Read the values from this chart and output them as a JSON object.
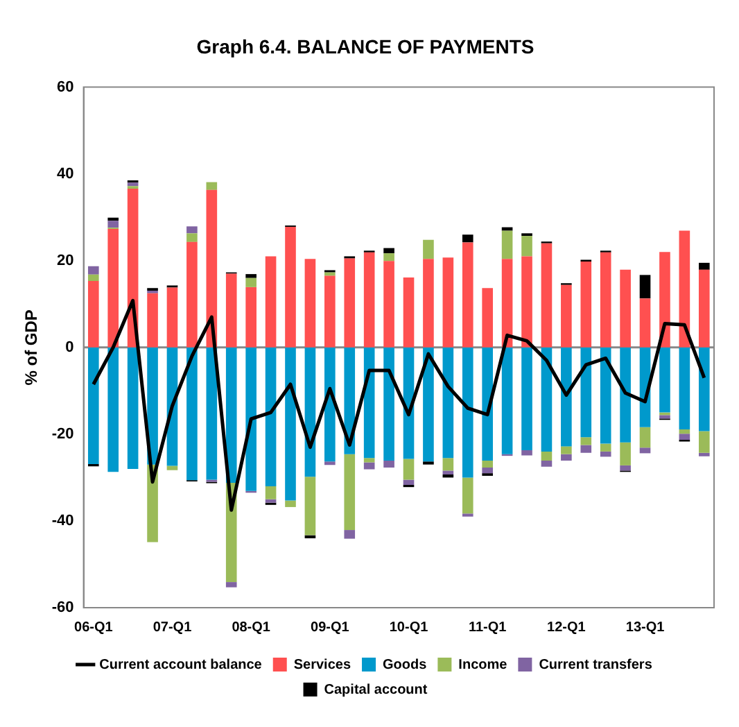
{
  "chart_data": {
    "type": "bar",
    "title": "Graph 6.4. BALANCE OF PAYMENTS",
    "ylabel": "% of GDP",
    "categories": [
      "06-Q1",
      null,
      null,
      null,
      "07-Q1",
      null,
      null,
      null,
      "08-Q1",
      null,
      null,
      null,
      "09-Q1",
      null,
      null,
      null,
      "10-Q1",
      null,
      null,
      null,
      "11-Q1",
      null,
      null,
      null,
      "12-Q1",
      null,
      null,
      null,
      "13-Q1",
      null,
      null,
      null
    ],
    "stacked": true,
    "series": [
      {
        "name": "Services",
        "color": "#ff5050",
        "values": [
          15.3,
          27.3,
          36.6,
          12.5,
          13.8,
          24.3,
          36.3,
          17,
          13.9,
          21,
          27.8,
          20.4,
          16.5,
          20.5,
          21.9,
          19.9,
          16.1,
          20.4,
          20.7,
          24.2,
          13.7,
          20.4,
          21,
          24,
          14.4,
          19.8,
          21.9,
          17.9,
          11.3,
          22,
          26.9,
          17.9
        ]
      },
      {
        "name": "Goods",
        "color": "#0099cc",
        "values": [
          -26.9,
          -28.7,
          -28,
          -27,
          -27.3,
          -30.6,
          -30.5,
          -31.2,
          -33.1,
          -32,
          -35.3,
          -29.8,
          -26.3,
          -24.6,
          -25.5,
          -26.1,
          -25.7,
          -26.3,
          -25.5,
          -30,
          -26.1,
          -24.6,
          -23.7,
          -24,
          -22.8,
          -20.7,
          -22.2,
          -21.9,
          -18.4,
          -15,
          -18.9,
          -19.3
        ]
      },
      {
        "name": "Income",
        "color": "#9bbb59",
        "values": [
          1.5,
          0.3,
          0.6,
          -17.9,
          -1,
          2,
          1.8,
          -22.9,
          2.1,
          -3,
          -1.5,
          -13.5,
          0.8,
          -17.5,
          -1,
          1.8,
          -4.8,
          4.4,
          -2.9,
          -8.3,
          -1.6,
          6.5,
          4.7,
          -2.1,
          -1.8,
          -1.8,
          -1.8,
          -5.3,
          -4.7,
          -0.6,
          -1,
          -5
        ]
      },
      {
        "name": "Current transfers",
        "color": "#8064a2",
        "values": [
          1.9,
          1.6,
          0.8,
          0.6,
          null,
          1.6,
          -0.5,
          -1.2,
          -0.4,
          -0.8,
          null,
          null,
          -0.8,
          -2,
          -1.6,
          -1.6,
          -1.2,
          null,
          -0.9,
          -0.7,
          -1.3,
          -0.4,
          -1.2,
          -1.4,
          -1.5,
          -1.8,
          -1.2,
          -1.2,
          -1.3,
          -0.8,
          -1.4,
          -0.8
        ]
      },
      {
        "name": "Capital account",
        "color": "#000000",
        "values": [
          -0.5,
          0.7,
          0.5,
          0.6,
          0.5,
          -0.3,
          -0.3,
          0.3,
          0.9,
          -0.5,
          0.3,
          -0.7,
          0.5,
          0.5,
          0.4,
          1.2,
          -0.5,
          -0.7,
          -0.7,
          1.8,
          -0.6,
          0.8,
          0.6,
          0.4,
          0.4,
          0.4,
          0.4,
          -0.3,
          5.4,
          -0.3,
          -0.4,
          1.6
        ]
      },
      {
        "name": "Current account balance",
        "type": "line",
        "color": "#000000",
        "values": [
          -8.5,
          0,
          10.8,
          -31,
          -13.5,
          -2,
          7,
          -37.5,
          -16.5,
          -15,
          -8.5,
          -23,
          -9.5,
          -22.5,
          -5.3,
          -5.3,
          -15.5,
          -1.5,
          -9,
          -14,
          -15.5,
          2.8,
          1.5,
          -3,
          -11,
          -4,
          -2.5,
          -10.5,
          -12.5,
          5.5,
          5.2,
          -7
        ]
      }
    ],
    "ylim": [
      -60,
      60
    ],
    "yticks": [
      -60,
      -40,
      -20,
      0,
      20,
      40,
      60
    ],
    "ref_lines": [
      {
        "axis": "y",
        "value": 0,
        "color": "#888888"
      }
    ],
    "grid": false,
    "legend": "bottom",
    "marker": "none"
  }
}
